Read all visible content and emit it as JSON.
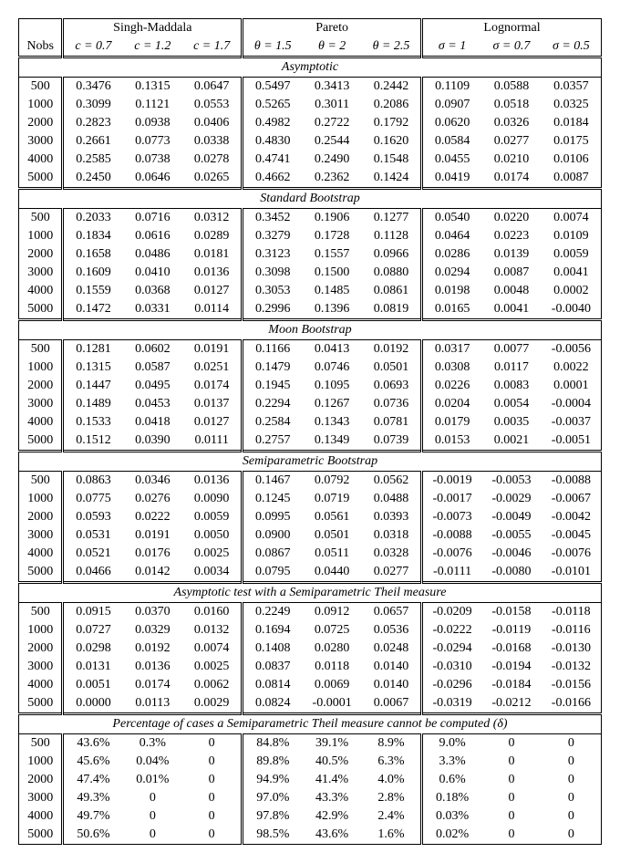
{
  "header": {
    "nobs_label": "Nobs",
    "distributions": [
      {
        "name": "Singh-Maddala",
        "params": [
          "c = 0.7",
          "c = 1.2",
          "c = 1.7"
        ]
      },
      {
        "name": "Pareto",
        "params": [
          "θ = 1.5",
          "θ = 2",
          "θ = 2.5"
        ]
      },
      {
        "name": "Lognormal",
        "params": [
          "σ = 1",
          "σ = 0.7",
          "σ = 0.5"
        ]
      }
    ]
  },
  "sections": [
    {
      "title": "Asymptotic",
      "rows": [
        {
          "nobs": "500",
          "vals": [
            "0.3476",
            "0.1315",
            "0.0647",
            "0.5497",
            "0.3413",
            "0.2442",
            "0.1109",
            "0.0588",
            "0.0357"
          ]
        },
        {
          "nobs": "1000",
          "vals": [
            "0.3099",
            "0.1121",
            "0.0553",
            "0.5265",
            "0.3011",
            "0.2086",
            "0.0907",
            "0.0518",
            "0.0325"
          ]
        },
        {
          "nobs": "2000",
          "vals": [
            "0.2823",
            "0.0938",
            "0.0406",
            "0.4982",
            "0.2722",
            "0.1792",
            "0.0620",
            "0.0326",
            "0.0184"
          ]
        },
        {
          "nobs": "3000",
          "vals": [
            "0.2661",
            "0.0773",
            "0.0338",
            "0.4830",
            "0.2544",
            "0.1620",
            "0.0584",
            "0.0277",
            "0.0175"
          ]
        },
        {
          "nobs": "4000",
          "vals": [
            "0.2585",
            "0.0738",
            "0.0278",
            "0.4741",
            "0.2490",
            "0.1548",
            "0.0455",
            "0.0210",
            "0.0106"
          ]
        },
        {
          "nobs": "5000",
          "vals": [
            "0.2450",
            "0.0646",
            "0.0265",
            "0.4662",
            "0.2362",
            "0.1424",
            "0.0419",
            "0.0174",
            "0.0087"
          ]
        }
      ]
    },
    {
      "title": "Standard Bootstrap",
      "rows": [
        {
          "nobs": "500",
          "vals": [
            "0.2033",
            "0.0716",
            "0.0312",
            "0.3452",
            "0.1906",
            "0.1277",
            "0.0540",
            "0.0220",
            "0.0074"
          ]
        },
        {
          "nobs": "1000",
          "vals": [
            "0.1834",
            "0.0616",
            "0.0289",
            "0.3279",
            "0.1728",
            "0.1128",
            "0.0464",
            "0.0223",
            "0.0109"
          ]
        },
        {
          "nobs": "2000",
          "vals": [
            "0.1658",
            "0.0486",
            "0.0181",
            "0.3123",
            "0.1557",
            "0.0966",
            "0.0286",
            "0.0139",
            "0.0059"
          ]
        },
        {
          "nobs": "3000",
          "vals": [
            "0.1609",
            "0.0410",
            "0.0136",
            "0.3098",
            "0.1500",
            "0.0880",
            "0.0294",
            "0.0087",
            "0.0041"
          ]
        },
        {
          "nobs": "4000",
          "vals": [
            "0.1559",
            "0.0368",
            "0.0127",
            "0.3053",
            "0.1485",
            "0.0861",
            "0.0198",
            "0.0048",
            "0.0002"
          ]
        },
        {
          "nobs": "5000",
          "vals": [
            "0.1472",
            "0.0331",
            "0.0114",
            "0.2996",
            "0.1396",
            "0.0819",
            "0.0165",
            "0.0041",
            "-0.0040"
          ]
        }
      ]
    },
    {
      "title": "Moon Bootstrap",
      "rows": [
        {
          "nobs": "500",
          "vals": [
            "0.1281",
            "0.0602",
            "0.0191",
            "0.1166",
            "0.0413",
            "0.0192",
            "0.0317",
            "0.0077",
            "-0.0056"
          ]
        },
        {
          "nobs": "1000",
          "vals": [
            "0.1315",
            "0.0587",
            "0.0251",
            "0.1479",
            "0.0746",
            "0.0501",
            "0.0308",
            "0.0117",
            "0.0022"
          ]
        },
        {
          "nobs": "2000",
          "vals": [
            "0.1447",
            "0.0495",
            "0.0174",
            "0.1945",
            "0.1095",
            "0.0693",
            "0.0226",
            "0.0083",
            "0.0001"
          ]
        },
        {
          "nobs": "3000",
          "vals": [
            "0.1489",
            "0.0453",
            "0.0137",
            "0.2294",
            "0.1267",
            "0.0736",
            "0.0204",
            "0.0054",
            "-0.0004"
          ]
        },
        {
          "nobs": "4000",
          "vals": [
            "0.1533",
            "0.0418",
            "0.0127",
            "0.2584",
            "0.1343",
            "0.0781",
            "0.0179",
            "0.0035",
            "-0.0037"
          ]
        },
        {
          "nobs": "5000",
          "vals": [
            "0.1512",
            "0.0390",
            "0.0111",
            "0.2757",
            "0.1349",
            "0.0739",
            "0.0153",
            "0.0021",
            "-0.0051"
          ]
        }
      ]
    },
    {
      "title": "Semiparametric Bootstrap",
      "rows": [
        {
          "nobs": "500",
          "vals": [
            "0.0863",
            "0.0346",
            "0.0136",
            "0.1467",
            "0.0792",
            "0.0562",
            "-0.0019",
            "-0.0053",
            "-0.0088"
          ]
        },
        {
          "nobs": "1000",
          "vals": [
            "0.0775",
            "0.0276",
            "0.0090",
            "0.1245",
            "0.0719",
            "0.0488",
            "-0.0017",
            "-0.0029",
            "-0.0067"
          ]
        },
        {
          "nobs": "2000",
          "vals": [
            "0.0593",
            "0.0222",
            "0.0059",
            "0.0995",
            "0.0561",
            "0.0393",
            "-0.0073",
            "-0.0049",
            "-0.0042"
          ]
        },
        {
          "nobs": "3000",
          "vals": [
            "0.0531",
            "0.0191",
            "0.0050",
            "0.0900",
            "0.0501",
            "0.0318",
            "-0.0088",
            "-0.0055",
            "-0.0045"
          ]
        },
        {
          "nobs": "4000",
          "vals": [
            "0.0521",
            "0.0176",
            "0.0025",
            "0.0867",
            "0.0511",
            "0.0328",
            "-0.0076",
            "-0.0046",
            "-0.0076"
          ]
        },
        {
          "nobs": "5000",
          "vals": [
            "0.0466",
            "0.0142",
            "0.0034",
            "0.0795",
            "0.0440",
            "0.0277",
            "-0.0111",
            "-0.0080",
            "-0.0101"
          ]
        }
      ]
    },
    {
      "title": "Asymptotic test with a Semiparametric Theil measure",
      "rows": [
        {
          "nobs": "500",
          "vals": [
            "0.0915",
            "0.0370",
            "0.0160",
            "0.2249",
            "0.0912",
            "0.0657",
            "-0.0209",
            "-0.0158",
            "-0.0118"
          ]
        },
        {
          "nobs": "1000",
          "vals": [
            "0.0727",
            "0.0329",
            "0.0132",
            "0.1694",
            "0.0725",
            "0.0536",
            "-0.0222",
            "-0.0119",
            "-0.0116"
          ]
        },
        {
          "nobs": "2000",
          "vals": [
            "0.0298",
            "0.0192",
            "0.0074",
            "0.1408",
            "0.0280",
            "0.0248",
            "-0.0294",
            "-0.0168",
            "-0.0130"
          ]
        },
        {
          "nobs": "3000",
          "vals": [
            "0.0131",
            "0.0136",
            "0.0025",
            "0.0837",
            "0.0118",
            "0.0140",
            "-0.0310",
            "-0.0194",
            "-0.0132"
          ]
        },
        {
          "nobs": "4000",
          "vals": [
            "0.0051",
            "0.0174",
            "0.0062",
            "0.0814",
            "0.0069",
            "0.0140",
            "-0.0296",
            "-0.0184",
            "-0.0156"
          ]
        },
        {
          "nobs": "5000",
          "vals": [
            "0.0000",
            "0.0113",
            "0.0029",
            "0.0824",
            "-0.0001",
            "0.0067",
            "-0.0319",
            "-0.0212",
            "-0.0166"
          ]
        }
      ]
    },
    {
      "title": "Percentage of cases a Semiparametric Theil measure cannot be computed (δ)",
      "rows": [
        {
          "nobs": "500",
          "vals": [
            "43.6%",
            "0.3%",
            "0",
            "84.8%",
            "39.1%",
            "8.9%",
            "9.0%",
            "0",
            "0"
          ]
        },
        {
          "nobs": "1000",
          "vals": [
            "45.6%",
            "0.04%",
            "0",
            "89.8%",
            "40.5%",
            "6.3%",
            "3.3%",
            "0",
            "0"
          ]
        },
        {
          "nobs": "2000",
          "vals": [
            "47.4%",
            "0.01%",
            "0",
            "94.9%",
            "41.4%",
            "4.0%",
            "0.6%",
            "0",
            "0"
          ]
        },
        {
          "nobs": "3000",
          "vals": [
            "49.3%",
            "0",
            "0",
            "97.0%",
            "43.3%",
            "2.8%",
            "0.18%",
            "0",
            "0"
          ]
        },
        {
          "nobs": "4000",
          "vals": [
            "49.7%",
            "0",
            "0",
            "97.8%",
            "42.9%",
            "2.4%",
            "0.03%",
            "0",
            "0"
          ]
        },
        {
          "nobs": "5000",
          "vals": [
            "50.6%",
            "0",
            "0",
            "98.5%",
            "43.6%",
            "1.6%",
            "0.02%",
            "0",
            "0"
          ]
        }
      ]
    }
  ],
  "style": {
    "font_family": "Times New Roman",
    "font_size_pt": 11,
    "background_color": "#ffffff",
    "text_color": "#000000",
    "border_color": "#000000"
  }
}
